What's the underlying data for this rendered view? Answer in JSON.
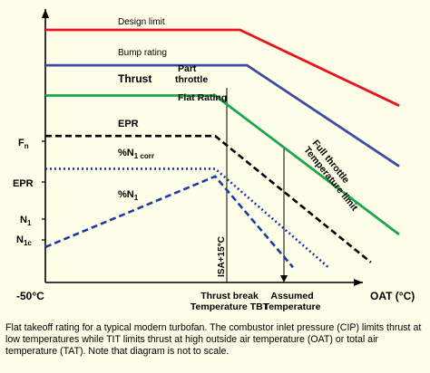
{
  "chart_data": {
    "type": "line",
    "title": "",
    "x_axis": {
      "label": "OAT (°C)",
      "tick_labels": [
        "-50°C",
        "Thrust break\nTemperature TBT",
        "Assumed\nTemperature"
      ],
      "reference_line_label": "ISA+15°C",
      "scale": "not to scale"
    },
    "y_axis": {
      "tick_labels": [
        "Fn",
        "EPR",
        "N1",
        "N1c"
      ]
    },
    "series": [
      {
        "name": "Design limit",
        "color": "#e8131c",
        "style": "solid",
        "x_rel": [
          0,
          0.55,
          1.0
        ],
        "y_rel": [
          1.0,
          1.0,
          0.7
        ]
      },
      {
        "name": "Bump rating",
        "color": "#3b4ca3",
        "style": "solid",
        "x_rel": [
          0,
          0.57,
          1.0
        ],
        "y_rel": [
          0.86,
          0.86,
          0.46
        ]
      },
      {
        "name": "Thrust",
        "color": "#1aa64a",
        "style": "solid",
        "x_rel": [
          0,
          0.48,
          1.0
        ],
        "y_rel": [
          0.74,
          0.74,
          0.19
        ]
      },
      {
        "name": "EPR",
        "color": "#000000",
        "style": "dashed",
        "x_rel": [
          0,
          0.48,
          0.92
        ],
        "y_rel": [
          0.58,
          0.58,
          0.08
        ]
      },
      {
        "name": "%N1corr",
        "color": "#1b3da0",
        "style": "dotted",
        "x_rel": [
          0,
          0.48,
          0.8
        ],
        "y_rel": [
          0.45,
          0.45,
          0.06
        ]
      },
      {
        "name": "%N1",
        "color": "#1b3da0",
        "style": "dashed",
        "x_rel": [
          0,
          0.48,
          0.7
        ],
        "y_rel": [
          0.14,
          0.42,
          0.06
        ]
      }
    ],
    "annotations": [
      {
        "text": "Part throttle"
      },
      {
        "text": "Flat Rating"
      },
      {
        "text": "Full throttle Temperature limit"
      }
    ],
    "colors": {
      "background": "#fdfde8",
      "design_limit": "#e8131c",
      "bump_rating": "#3b4ca3",
      "thrust": "#1aa64a",
      "epr": "#000000",
      "n1": "#1b3da0"
    },
    "grid": false,
    "legend": "none (inline labels)"
  },
  "labels": {
    "design_limit": "Design limit",
    "bump_rating": "Bump rating",
    "thrust": "Thrust",
    "part": "Part",
    "throttle": "throttle",
    "flat_rating": "Flat Rating",
    "full_throttle": "Full throttle",
    "temperature_limit": "Temperature limit",
    "epr_curve": "EPR",
    "n1corr_base": "%N",
    "n1corr_sub": "1 corr",
    "n1_base": "%N",
    "n1_sub": "1",
    "isa": "ISA+15°C"
  },
  "yticks": {
    "fn_base": "F",
    "fn_sub": "n",
    "epr": "EPR",
    "n1_base": "N",
    "n1_sub": "1",
    "n1c_base": "N",
    "n1c_sub": "1c"
  },
  "xticks": {
    "minus50": "-50°C",
    "tbt_line1": "Thrust break",
    "tbt_line2": "Temperature TBT",
    "assumed_line1": "Assumed",
    "assumed_line2": "Temperature",
    "oat": "OAT (°C)"
  },
  "caption": "Flat takeoff rating for a typical modern turbofan. The combustor inlet pressure (CIP) limits thrust at low temperatures while TIT limits thrust at high outside air temperature (OAT) or total air temperature (TAT). Note that diagram is not to scale."
}
